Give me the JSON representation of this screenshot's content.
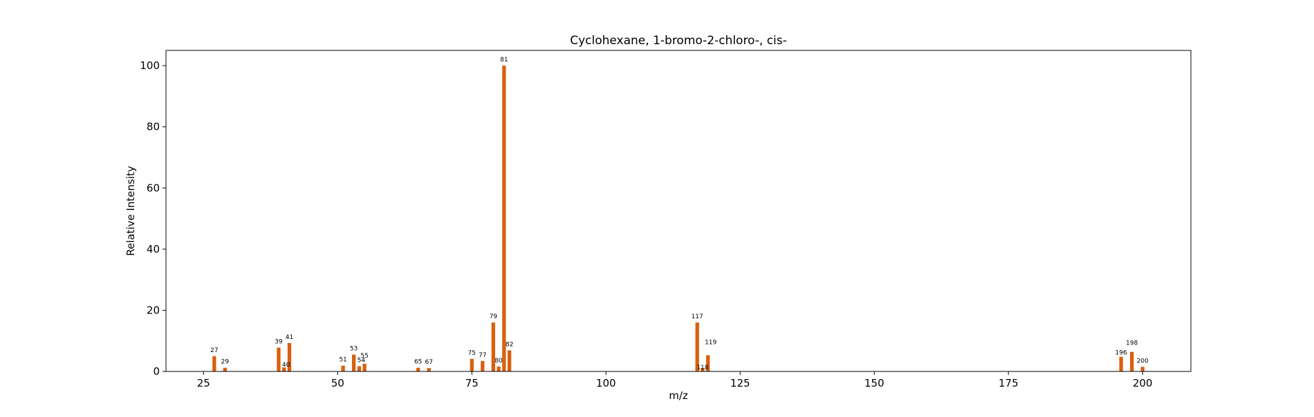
{
  "chart_data": {
    "type": "bar",
    "title": "Cyclohexane, 1-bromo-2-chloro-, cis-",
    "xlabel": "m/z",
    "ylabel": "Relative Intensity",
    "xlim": [
      18,
      209
    ],
    "ylim": [
      0,
      105
    ],
    "xticks": [
      25,
      50,
      75,
      100,
      125,
      150,
      175,
      200
    ],
    "yticks": [
      0,
      20,
      40,
      60,
      80,
      100
    ],
    "grid": false,
    "bar_color": "#d95f0e",
    "peaks": [
      {
        "mz": 27,
        "intensity": 5.0,
        "label": "27"
      },
      {
        "mz": 29,
        "intensity": 1.2,
        "label": "29"
      },
      {
        "mz": 39,
        "intensity": 7.8,
        "label": "39"
      },
      {
        "mz": 40,
        "intensity": 1.3,
        "label": "40"
      },
      {
        "mz": 41,
        "intensity": 9.3,
        "label": "41"
      },
      {
        "mz": 51,
        "intensity": 1.9,
        "label": "51"
      },
      {
        "mz": 53,
        "intensity": 5.5,
        "label": "53"
      },
      {
        "mz": 54,
        "intensity": 1.7,
        "label": "54"
      },
      {
        "mz": 55,
        "intensity": 2.5,
        "label": "55"
      },
      {
        "mz": 65,
        "intensity": 1.2,
        "label": "65"
      },
      {
        "mz": 67,
        "intensity": 1.1,
        "label": "67"
      },
      {
        "mz": 75,
        "intensity": 4.1,
        "label": "75"
      },
      {
        "mz": 77,
        "intensity": 3.4,
        "label": "77"
      },
      {
        "mz": 79,
        "intensity": 16.0,
        "label": "79"
      },
      {
        "mz": 80,
        "intensity": 1.6,
        "label": "80"
      },
      {
        "mz": 81,
        "intensity": 100.0,
        "label": "81"
      },
      {
        "mz": 82,
        "intensity": 6.9,
        "label": "82"
      },
      {
        "mz": 117,
        "intensity": 16.0,
        "label": "117"
      },
      {
        "mz": 118,
        "intensity": 1.1,
        "label": "118"
      },
      {
        "mz": 119,
        "intensity": 5.3,
        "label": "119"
      },
      {
        "mz": 196,
        "intensity": 4.8,
        "label": "196"
      },
      {
        "mz": 198,
        "intensity": 6.4,
        "label": "198"
      },
      {
        "mz": 200,
        "intensity": 1.5,
        "label": "200"
      }
    ]
  }
}
